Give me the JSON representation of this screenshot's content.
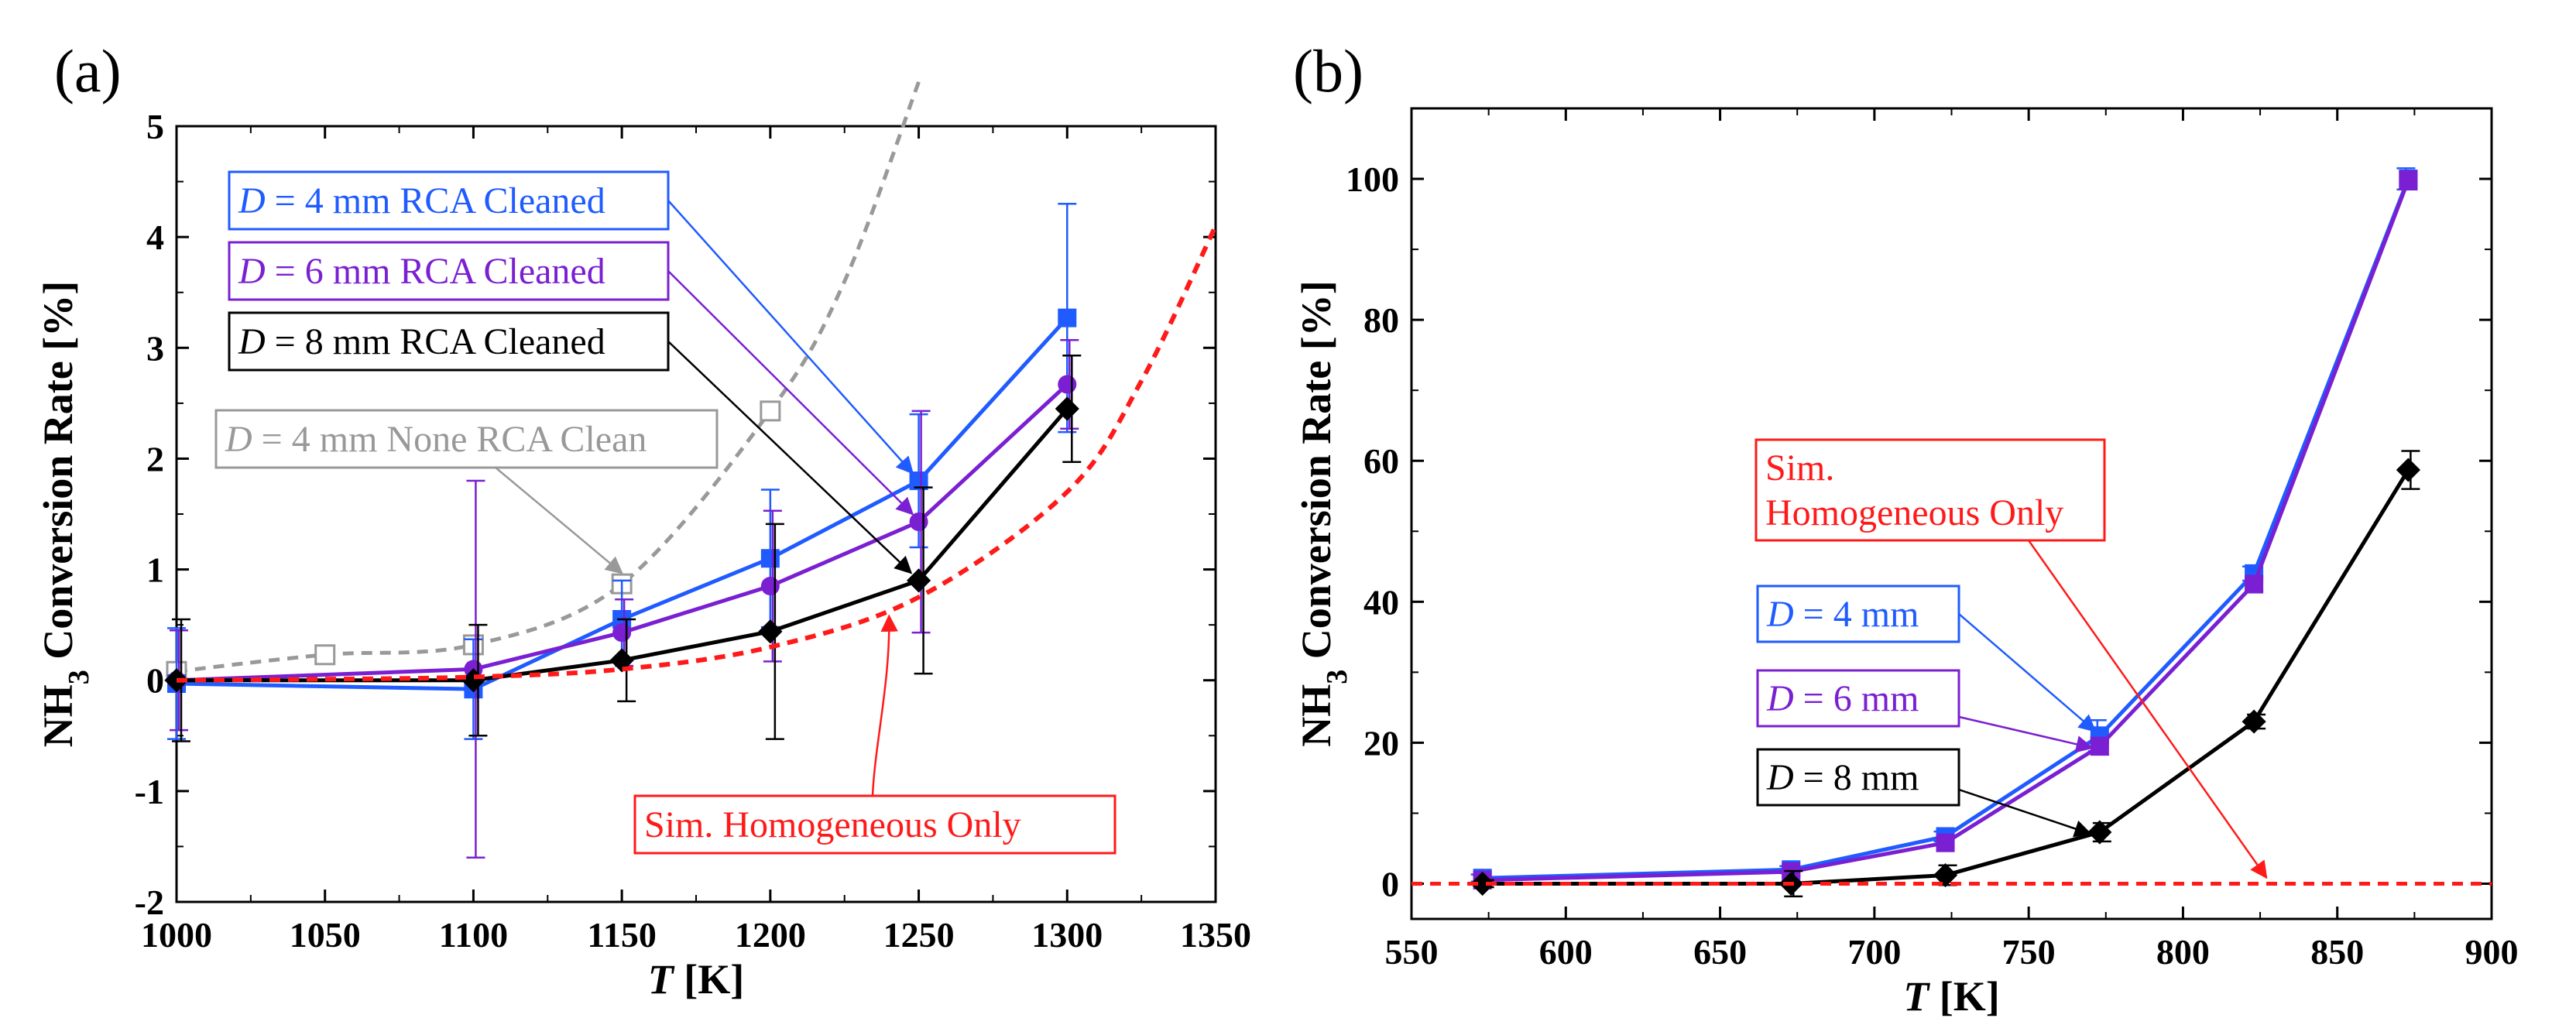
{
  "chart_data": [
    {
      "type": "line",
      "panel_label": "(a)",
      "xlabel_var": "T",
      "xlabel_unit": " [K]",
      "ylabel_main": "NH",
      "ylabel_sub": "3",
      "ylabel_rest": "  Conversion Rate  [%]",
      "xlim": [
        1000,
        1350
      ],
      "ylim": [
        -2,
        5
      ],
      "xticks": [
        1000,
        1050,
        1100,
        1150,
        1200,
        1250,
        1300,
        1350
      ],
      "yticks": [
        -2,
        -1,
        0,
        1,
        2,
        3,
        4,
        5
      ],
      "grid": false,
      "series": [
        {
          "name": "D = 4 mm None RCA Clean",
          "name_var": "D",
          "name_rest": " = 4 mm None RCA Clean",
          "color": "#999999",
          "dashed": true,
          "marker": "open-square",
          "x": [
            1000,
            1050,
            1100,
            1150,
            1200
          ],
          "y": [
            0.08,
            0.23,
            0.32,
            0.87,
            2.43
          ],
          "curve_x": [
            1000,
            1050,
            1100,
            1150,
            1200,
            1225,
            1250
          ],
          "curve_y": [
            0.08,
            0.23,
            0.32,
            0.87,
            2.43,
            3.6,
            5.4
          ]
        },
        {
          "name": "D = 4 mm RCA Cleaned",
          "name_var": "D",
          "name_rest": " = 4 mm RCA Cleaned",
          "color": "#1f5bff",
          "dashed": false,
          "marker": "square",
          "x": [
            1000,
            1100,
            1150,
            1200,
            1250,
            1300
          ],
          "y": [
            -0.03,
            -0.08,
            0.55,
            1.1,
            1.8,
            3.27
          ],
          "err": [
            0.5,
            0.45,
            0.35,
            0.62,
            0.6,
            1.03
          ]
        },
        {
          "name": "D = 6 mm RCA Cleaned",
          "name_var": "D",
          "name_rest": " = 6 mm RCA Cleaned",
          "color": "#7a1fd1",
          "dashed": false,
          "marker": "circle",
          "x": [
            1000,
            1100,
            1150,
            1200,
            1250,
            1300
          ],
          "y": [
            0.0,
            0.1,
            0.43,
            0.85,
            1.43,
            2.67
          ],
          "err": [
            0.45,
            1.7,
            0.3,
            0.68,
            1.0,
            0.4
          ]
        },
        {
          "name": "D = 8 mm RCA Cleaned",
          "name_var": "D",
          "name_rest": " = 8 mm RCA Cleaned",
          "color": "#000000",
          "dashed": false,
          "marker": "diamond",
          "x": [
            1000,
            1100,
            1150,
            1200,
            1250,
            1300
          ],
          "y": [
            0.0,
            0.0,
            0.18,
            0.44,
            0.9,
            2.45
          ],
          "err": [
            0.55,
            0.5,
            0.37,
            0.97,
            0.84,
            0.48
          ]
        },
        {
          "name": "Sim. Homogeneous Only",
          "color": "#ff1a1a",
          "dashed": true,
          "marker": "none",
          "x": [
            1000,
            1050,
            1100,
            1150,
            1200,
            1250,
            1300,
            1325,
            1350
          ],
          "y": [
            0.0,
            0.01,
            0.03,
            0.1,
            0.3,
            0.75,
            1.7,
            2.7,
            4.1
          ]
        }
      ]
    },
    {
      "type": "line",
      "panel_label": "(b)",
      "xlabel_var": "T",
      "xlabel_unit": " [K]",
      "ylabel_main": "NH",
      "ylabel_sub": "3",
      "ylabel_rest": "  Conversion Rate  [%]",
      "xlim": [
        550,
        900
      ],
      "ylim": [
        -5,
        110
      ],
      "xticks": [
        550,
        600,
        650,
        700,
        750,
        800,
        850,
        900
      ],
      "yticks": [
        0,
        20,
        40,
        60,
        80,
        100
      ],
      "grid": false,
      "series": [
        {
          "name": "D = 4 mm",
          "name_var": "D",
          "name_rest": " = 4 mm",
          "color": "#1f5bff",
          "dashed": false,
          "marker": "square",
          "x": [
            573,
            673,
            723,
            773,
            823,
            873
          ],
          "y": [
            0.8,
            2.0,
            6.7,
            21.0,
            44.0,
            100.0
          ],
          "err": [
            0.5,
            0.5,
            0.7,
            2.2,
            1.0,
            1.5
          ]
        },
        {
          "name": "D = 6 mm",
          "name_var": "D",
          "name_rest": " = 6 mm",
          "color": "#7a1fd1",
          "dashed": false,
          "marker": "square",
          "x": [
            573,
            673,
            723,
            773,
            823,
            873
          ],
          "y": [
            0.5,
            1.7,
            5.8,
            19.5,
            42.5,
            99.8
          ],
          "err": [
            0.4,
            0.5,
            0.6,
            1.2,
            1.0,
            1.3
          ]
        },
        {
          "name": "D = 8 mm",
          "name_var": "D",
          "name_rest": " = 8 mm",
          "color": "#000000",
          "dashed": false,
          "marker": "diamond",
          "x": [
            573,
            673,
            723,
            773,
            823,
            873
          ],
          "y": [
            0.0,
            0.0,
            1.2,
            7.3,
            23.0,
            58.7
          ],
          "err": [
            0.5,
            1.8,
            1.4,
            1.3,
            1.0,
            2.7
          ]
        },
        {
          "name": "Sim. Homogeneous Only",
          "name_line1": "Sim.",
          "name_line2": "Homogeneous Only",
          "color": "#ff1a1a",
          "dashed": true,
          "marker": "none",
          "x": [
            550,
            900
          ],
          "y": [
            0,
            0
          ]
        }
      ]
    }
  ]
}
